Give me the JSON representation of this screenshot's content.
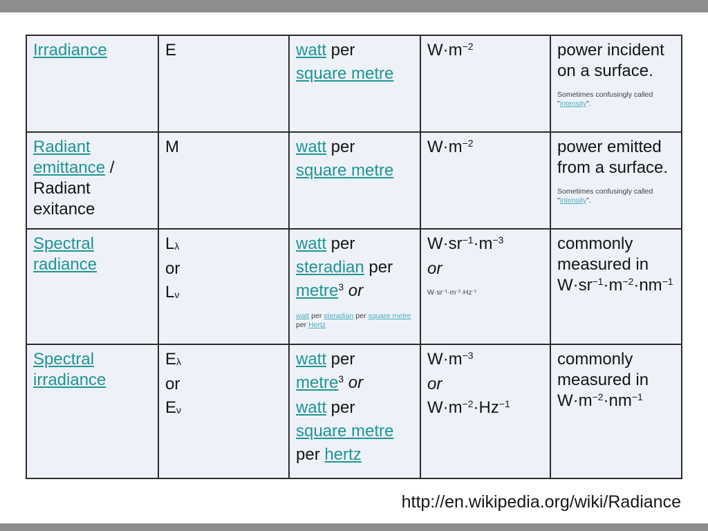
{
  "colors": {
    "background": "#8d8d8d",
    "slide": "#ffffff",
    "cell_bg": "#eef2f8",
    "border": "#2b2b2b",
    "text": "#141414",
    "link": "#1d9595",
    "small_link": "#4aacbe"
  },
  "footer": {
    "url": "http://en.wikipedia.org/wiki/Radiance"
  },
  "table": {
    "column_semantics": [
      "quantity",
      "symbol",
      "si-units",
      "si-abbreviation",
      "notes"
    ],
    "rows": [
      {
        "cells": [
          {
            "blocks": [
              {
                "size": "large",
                "segments": [
                  {
                    "style": "link",
                    "text": "Irradiance"
                  }
                ]
              }
            ]
          },
          {
            "blocks": [
              {
                "size": "large",
                "segments": [
                  {
                    "style": "plain",
                    "text": "E"
                  }
                ]
              }
            ]
          },
          {
            "blocks": [
              {
                "size": "large",
                "segments": [
                  {
                    "style": "link",
                    "text": "watt"
                  },
                  {
                    "style": "plain",
                    "text": " per"
                  }
                ]
              },
              {
                "size": "large",
                "segments": [
                  {
                    "style": "link",
                    "text": "square metre"
                  }
                ]
              }
            ]
          },
          {
            "blocks": [
              {
                "size": "large",
                "segments": [
                  {
                    "style": "plain",
                    "text": "W·m"
                  },
                  {
                    "style": "sup",
                    "text": "−2"
                  }
                ]
              }
            ]
          },
          {
            "blocks": [
              {
                "size": "large",
                "segments": [
                  {
                    "style": "plain",
                    "text": "power incident on a surface."
                  }
                ]
              },
              {
                "size": "small",
                "segments": [
                  {
                    "style": "plain",
                    "text": "Sometimes confusingly called \""
                  },
                  {
                    "style": "link",
                    "text": "intensity"
                  },
                  {
                    "style": "plain",
                    "text": "\"."
                  }
                ]
              }
            ]
          }
        ]
      },
      {
        "cells": [
          {
            "blocks": [
              {
                "size": "large",
                "segments": [
                  {
                    "style": "link",
                    "text": "Radiant emittance"
                  },
                  {
                    "style": "plain",
                    "text": " / Radiant exitance"
                  }
                ]
              }
            ]
          },
          {
            "blocks": [
              {
                "size": "large",
                "segments": [
                  {
                    "style": "plain",
                    "text": "M"
                  }
                ]
              }
            ]
          },
          {
            "blocks": [
              {
                "size": "large",
                "segments": [
                  {
                    "style": "link",
                    "text": "watt"
                  },
                  {
                    "style": "plain",
                    "text": " per"
                  }
                ]
              },
              {
                "size": "large",
                "segments": [
                  {
                    "style": "link",
                    "text": "square metre"
                  }
                ]
              }
            ]
          },
          {
            "blocks": [
              {
                "size": "large",
                "segments": [
                  {
                    "style": "plain",
                    "text": "W·m"
                  },
                  {
                    "style": "sup",
                    "text": "−2"
                  }
                ]
              }
            ]
          },
          {
            "blocks": [
              {
                "size": "large",
                "segments": [
                  {
                    "style": "plain",
                    "text": "power emitted from a surface."
                  }
                ]
              },
              {
                "size": "small",
                "segments": [
                  {
                    "style": "plain",
                    "text": "Sometimes confusingly called \""
                  },
                  {
                    "style": "link",
                    "text": "intensity"
                  },
                  {
                    "style": "plain",
                    "text": "\"."
                  }
                ]
              }
            ]
          }
        ]
      },
      {
        "cells": [
          {
            "blocks": [
              {
                "size": "large",
                "segments": [
                  {
                    "style": "link",
                    "text": "Spectral radiance"
                  }
                ]
              }
            ]
          },
          {
            "blocks": [
              {
                "size": "large",
                "segments": [
                  {
                    "style": "plain",
                    "text": "L"
                  },
                  {
                    "style": "sub",
                    "text": "λ"
                  }
                ]
              },
              {
                "size": "large",
                "segments": [
                  {
                    "style": "plain",
                    "text": "or"
                  }
                ]
              },
              {
                "size": "large",
                "segments": [
                  {
                    "style": "plain",
                    "text": "L"
                  },
                  {
                    "style": "sub",
                    "text": "ν"
                  }
                ]
              }
            ]
          },
          {
            "blocks": [
              {
                "size": "large",
                "segments": [
                  {
                    "style": "link",
                    "text": "watt"
                  },
                  {
                    "style": "plain",
                    "text": " per"
                  }
                ]
              },
              {
                "size": "large",
                "segments": [
                  {
                    "style": "link",
                    "text": "steradian"
                  },
                  {
                    "style": "plain",
                    "text": " per"
                  }
                ]
              },
              {
                "size": "large",
                "segments": [
                  {
                    "style": "link",
                    "text": "metre"
                  },
                  {
                    "style": "sup",
                    "text": "3"
                  },
                  {
                    "style": "italic",
                    "text": " or"
                  }
                ]
              },
              {
                "size": "small",
                "segments": [
                  {
                    "style": "link",
                    "text": "watt"
                  },
                  {
                    "style": "plain",
                    "text": " per "
                  },
                  {
                    "style": "link",
                    "text": "steradian"
                  },
                  {
                    "style": "plain",
                    "text": " per "
                  },
                  {
                    "style": "link",
                    "text": "square metre"
                  },
                  {
                    "style": "plain",
                    "text": " per "
                  },
                  {
                    "style": "link",
                    "text": "Hertz"
                  }
                ]
              }
            ]
          },
          {
            "blocks": [
              {
                "size": "large",
                "segments": [
                  {
                    "style": "plain",
                    "text": "W·sr"
                  },
                  {
                    "style": "sup",
                    "text": "−1"
                  },
                  {
                    "style": "plain",
                    "text": "·m"
                  },
                  {
                    "style": "sup",
                    "text": "−3"
                  }
                ]
              },
              {
                "size": "large",
                "segments": [
                  {
                    "style": "italic",
                    "text": "or"
                  }
                ]
              },
              {
                "size": "small",
                "segments": [
                  {
                    "style": "plain",
                    "text": "W·sr"
                  },
                  {
                    "style": "sup",
                    "text": "−1"
                  },
                  {
                    "style": "plain",
                    "text": "·m"
                  },
                  {
                    "style": "sup",
                    "text": "−2"
                  },
                  {
                    "style": "plain",
                    "text": "·Hz"
                  },
                  {
                    "style": "sup",
                    "text": "−1"
                  }
                ]
              }
            ]
          },
          {
            "blocks": [
              {
                "size": "large",
                "segments": [
                  {
                    "style": "plain",
                    "text": "commonly measured in W·sr"
                  },
                  {
                    "style": "sup",
                    "text": "−1"
                  },
                  {
                    "style": "plain",
                    "text": "·m"
                  },
                  {
                    "style": "sup",
                    "text": "−2"
                  },
                  {
                    "style": "plain",
                    "text": "·nm"
                  },
                  {
                    "style": "sup",
                    "text": "−1"
                  }
                ]
              }
            ]
          }
        ]
      },
      {
        "cells": [
          {
            "blocks": [
              {
                "size": "large",
                "segments": [
                  {
                    "style": "link",
                    "text": "Spectral irradiance"
                  }
                ]
              }
            ]
          },
          {
            "blocks": [
              {
                "size": "large",
                "segments": [
                  {
                    "style": "plain",
                    "text": "E"
                  },
                  {
                    "style": "sub",
                    "text": "λ"
                  }
                ]
              },
              {
                "size": "large",
                "segments": [
                  {
                    "style": "plain",
                    "text": "or"
                  }
                ]
              },
              {
                "size": "large",
                "segments": [
                  {
                    "style": "plain",
                    "text": "E"
                  },
                  {
                    "style": "sub",
                    "text": "ν"
                  }
                ]
              }
            ]
          },
          {
            "blocks": [
              {
                "size": "large",
                "segments": [
                  {
                    "style": "link",
                    "text": "watt"
                  },
                  {
                    "style": "plain",
                    "text": " per"
                  }
                ]
              },
              {
                "size": "large",
                "segments": [
                  {
                    "style": "link",
                    "text": "metre"
                  },
                  {
                    "style": "sup",
                    "text": "3"
                  },
                  {
                    "style": "italic",
                    "text": " or"
                  }
                ]
              },
              {
                "size": "large",
                "segments": [
                  {
                    "style": "link",
                    "text": "watt"
                  },
                  {
                    "style": "plain",
                    "text": " per"
                  }
                ]
              },
              {
                "size": "large",
                "segments": [
                  {
                    "style": "link",
                    "text": "square metre"
                  }
                ]
              },
              {
                "size": "large",
                "segments": [
                  {
                    "style": "plain",
                    "text": "per "
                  },
                  {
                    "style": "link",
                    "text": "hertz"
                  }
                ]
              }
            ]
          },
          {
            "blocks": [
              {
                "size": "large",
                "segments": [
                  {
                    "style": "plain",
                    "text": "W·m"
                  },
                  {
                    "style": "sup",
                    "text": "−3"
                  }
                ]
              },
              {
                "size": "large",
                "segments": [
                  {
                    "style": "italic",
                    "text": "or"
                  }
                ]
              },
              {
                "size": "large",
                "segments": [
                  {
                    "style": "plain",
                    "text": "W·m"
                  },
                  {
                    "style": "sup",
                    "text": "−2"
                  },
                  {
                    "style": "plain",
                    "text": "·Hz"
                  },
                  {
                    "style": "sup",
                    "text": "−1"
                  }
                ]
              }
            ]
          },
          {
            "blocks": [
              {
                "size": "large",
                "segments": [
                  {
                    "style": "plain",
                    "text": "commonly measured in W·m"
                  },
                  {
                    "style": "sup",
                    "text": "−2"
                  },
                  {
                    "style": "plain",
                    "text": "·nm"
                  },
                  {
                    "style": "sup",
                    "text": "−1"
                  }
                ]
              }
            ]
          }
        ]
      }
    ]
  }
}
